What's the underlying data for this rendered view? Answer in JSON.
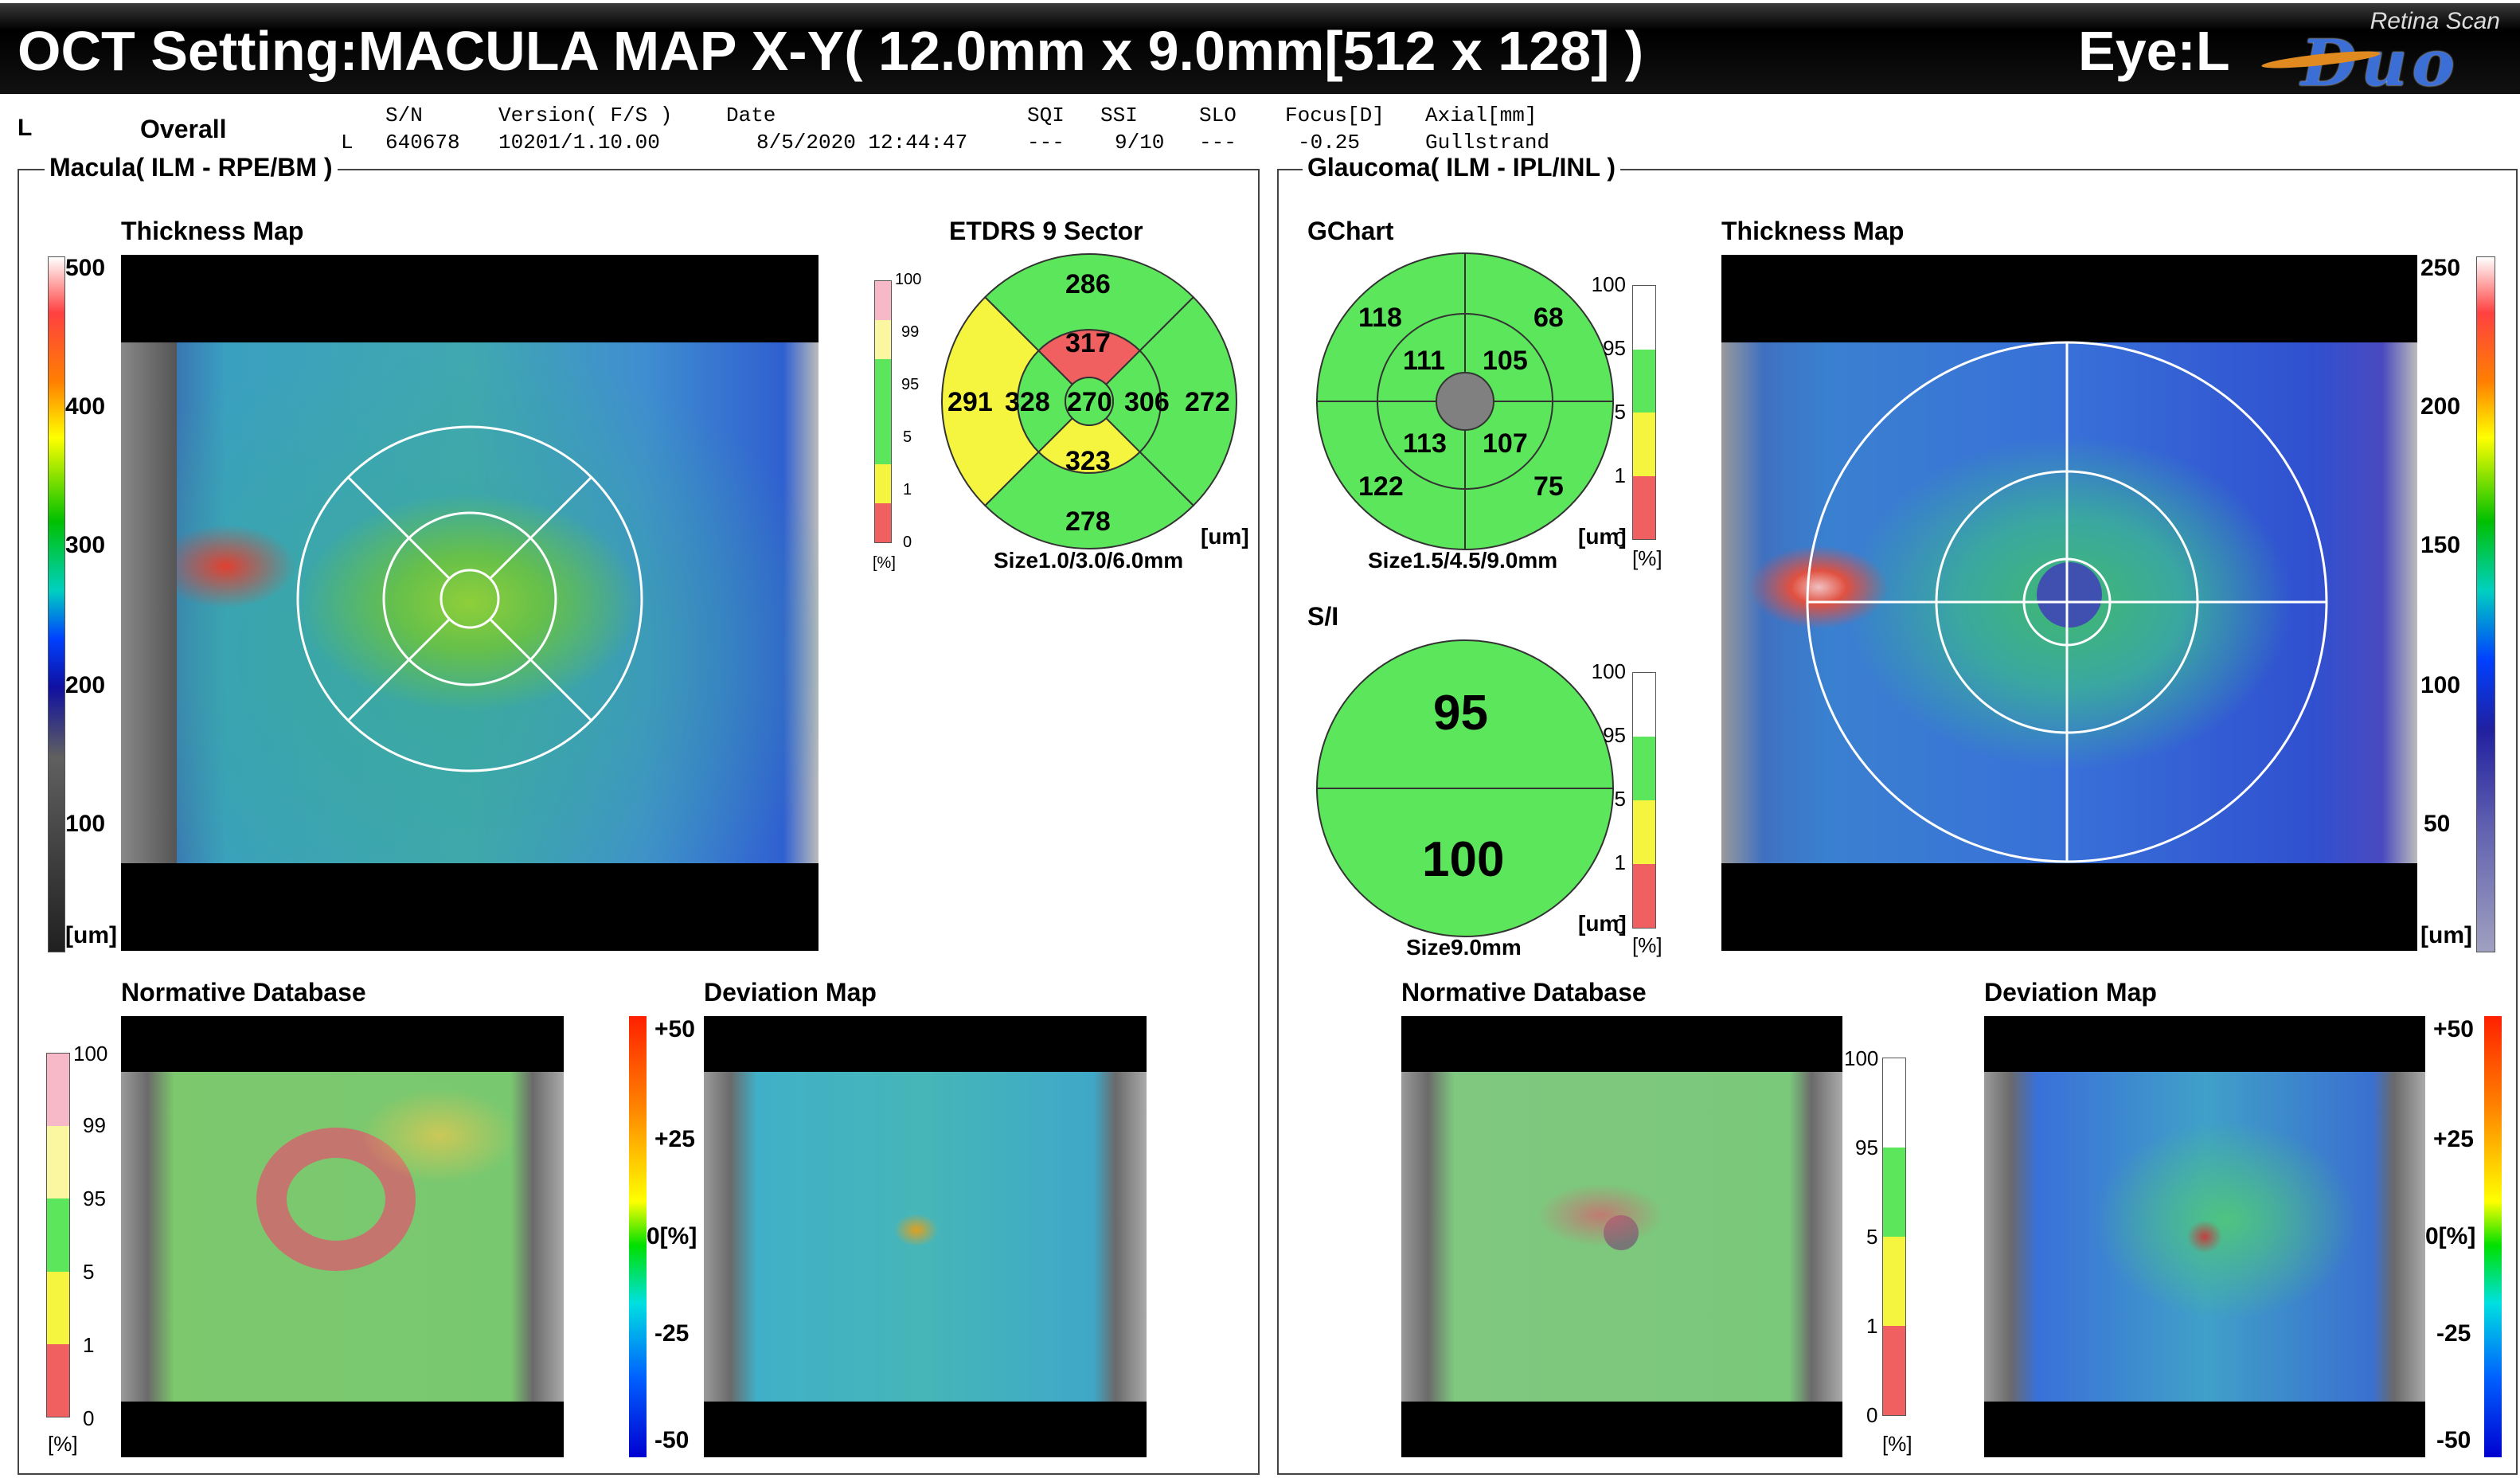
{
  "header": {
    "title": "OCT Setting:MACULA MAP X-Y( 12.0mm x 9.0mm[512 x 128] )",
    "eye": "Eye:L",
    "logo_top": "Retina Scan",
    "logo_main": "Duo"
  },
  "info": {
    "eye_code": "L",
    "overall": "Overall",
    "cols": [
      {
        "label": "S/N",
        "value": "640678"
      },
      {
        "label": "Version( F/S )",
        "value": "10201/1.10.00"
      },
      {
        "label": "Date",
        "value": "8/5/2020 12:44:47"
      },
      {
        "label": "SQI",
        "value": "---"
      },
      {
        "label": "SSI",
        "value": "9/10"
      },
      {
        "label": "SLO",
        "value": "---"
      },
      {
        "label": "Focus[D]",
        "value": "-0.25"
      },
      {
        "label": "Axial[mm]",
        "value": "Gullstrand"
      }
    ],
    "row_eye": "L"
  },
  "macula": {
    "section_title": "Macula( ILM - RPE/BM )",
    "thickness_title": "Thickness Map",
    "scale_ticks": [
      "500",
      "400",
      "300",
      "200",
      "100"
    ],
    "scale_unit": "[um]",
    "etdrs": {
      "title": "ETDRS 9 Sector",
      "center": "270",
      "inner": {
        "sup": "317",
        "temp": "328",
        "nas": "306",
        "inf": "323"
      },
      "outer": {
        "sup": "286",
        "temp": "291",
        "nas": "272",
        "inf": "278"
      },
      "size_label": "Size1.0/3.0/6.0mm",
      "unit": "[um]",
      "legend_ticks": [
        "100",
        "99",
        "95",
        "5",
        "1",
        "0"
      ],
      "legend_unit": "[%]"
    },
    "normative_title": "Normative Database",
    "normative_ticks": [
      "100",
      "99",
      "95",
      "5",
      "1",
      "0"
    ],
    "normative_unit": "[%]",
    "deviation_title": "Deviation Map",
    "deviation_ticks": [
      "+50",
      "+25",
      "0[%]",
      "-25",
      "-50"
    ]
  },
  "glaucoma": {
    "section_title": "Glaucoma( ILM - IPL/INL )",
    "gchart": {
      "title": "GChart",
      "outer": {
        "st": "118",
        "sn": "68",
        "it": "122",
        "in": "75"
      },
      "inner": {
        "st": "111",
        "sn": "105",
        "it": "113",
        "in": "107"
      },
      "size_label": "Size1.5/4.5/9.0mm",
      "unit": "[um]",
      "legend_ticks": [
        "100",
        "95",
        "5",
        "1",
        "0"
      ],
      "legend_unit": "[%]"
    },
    "si": {
      "title": "S/I",
      "superior": "95",
      "inferior": "100",
      "size_label": "Size9.0mm",
      "unit": "[um]",
      "legend_ticks": [
        "100",
        "95",
        "5",
        "1",
        "0"
      ],
      "legend_unit": "[%]"
    },
    "thickness_title": "Thickness Map",
    "scale_ticks": [
      "250",
      "200",
      "150",
      "100",
      "50"
    ],
    "scale_unit": "[um]",
    "normative_title": "Normative Database",
    "normative_ticks": [
      "100",
      "95",
      "5",
      "1",
      "0"
    ],
    "normative_unit": "[%]",
    "deviation_title": "Deviation Map",
    "deviation_ticks": [
      "+50",
      "+25",
      "0[%]",
      "-25",
      "-50"
    ]
  },
  "colors": {
    "normal_green": "#5ce65c",
    "borderline_yellow": "#f5f540",
    "abnormal_red": "#f06060",
    "above_pink": "#f7b8c8",
    "above_lightyellow": "#fbf7a0",
    "header_bg": "#111111"
  }
}
